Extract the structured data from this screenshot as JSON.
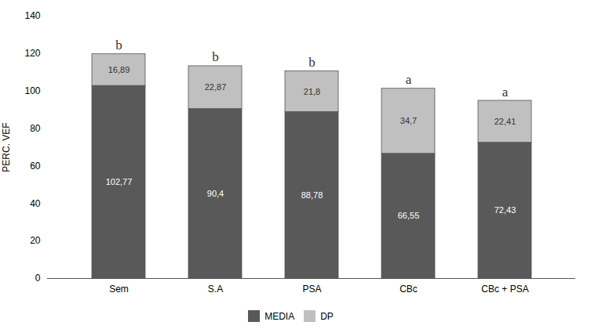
{
  "chart_data": {
    "type": "bar",
    "stacked": true,
    "categories": [
      "Sem",
      "S.A",
      "PSA",
      "CBc",
      "CBc + PSA"
    ],
    "series": [
      {
        "name": "MEDIA",
        "color": "#595959",
        "values": [
          102.77,
          90.4,
          88.78,
          66.55,
          72.43
        ],
        "value_labels": [
          "102,77",
          "90,4",
          "88,78",
          "66,55",
          "72,43"
        ]
      },
      {
        "name": "DP",
        "color": "#c0c0c0",
        "values": [
          16.89,
          22.87,
          21.8,
          34.7,
          22.41
        ],
        "value_labels": [
          "16,89",
          "22,87",
          "21,8",
          "34,7",
          "22,41"
        ]
      }
    ],
    "annotations": [
      "b",
      "b",
      "b",
      "a",
      "a"
    ],
    "ylabel": "PERC. VEF",
    "ylim": [
      0,
      140
    ],
    "yticks": [
      0,
      20,
      40,
      60,
      80,
      100,
      120,
      140
    ],
    "data_labels": true,
    "grid": false,
    "legend": "bottom"
  }
}
